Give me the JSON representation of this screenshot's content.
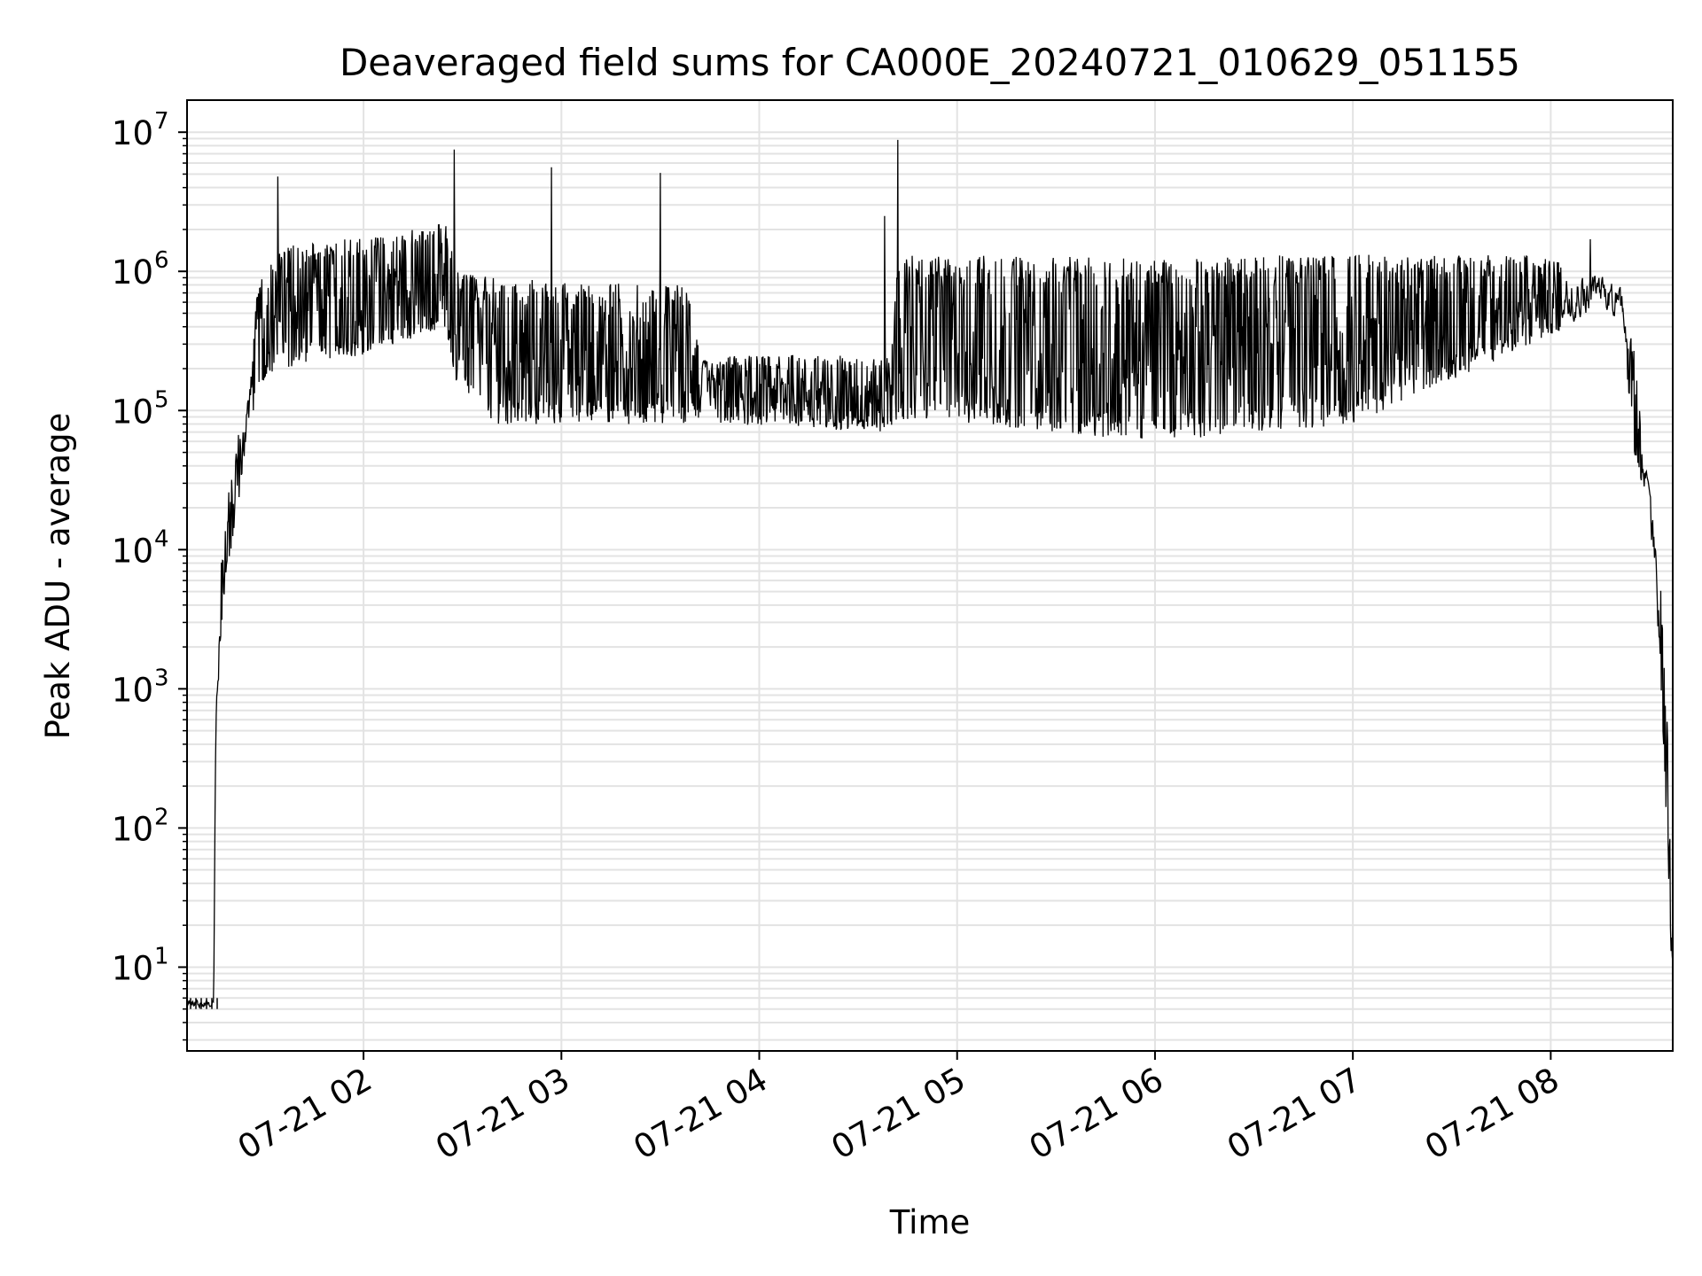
{
  "chart_data": {
    "type": "line",
    "title": "Deaveraged field sums for CA000E_20240721_010629_051155",
    "xlabel": "Time",
    "ylabel": "Peak ADU - average",
    "yscale": "log",
    "ylim": [
      2.5,
      17000000
    ],
    "xlim": [
      "2024-07-21 01:06:29",
      "2024-07-21 08:37:00"
    ],
    "grid": true,
    "legend": "none",
    "colors": {
      "line": "#000000",
      "grid": "#e3e3e3",
      "axes": "#000000"
    },
    "x_ticks": [
      {
        "value": "2024-07-21 02:00",
        "label": "07-21 02"
      },
      {
        "value": "2024-07-21 03:00",
        "label": "07-21 03"
      },
      {
        "value": "2024-07-21 04:00",
        "label": "07-21 04"
      },
      {
        "value": "2024-07-21 05:00",
        "label": "07-21 05"
      },
      {
        "value": "2024-07-21 06:00",
        "label": "07-21 06"
      },
      {
        "value": "2024-07-21 07:00",
        "label": "07-21 07"
      },
      {
        "value": "2024-07-21 08:00",
        "label": "07-21 08"
      }
    ],
    "y_ticks": [
      {
        "value": 10,
        "base": "10",
        "exp": "1"
      },
      {
        "value": 100,
        "base": "10",
        "exp": "2"
      },
      {
        "value": 1000,
        "base": "10",
        "exp": "3"
      },
      {
        "value": 10000,
        "base": "10",
        "exp": "4"
      },
      {
        "value": 100000,
        "base": "10",
        "exp": "5"
      },
      {
        "value": 1000000,
        "base": "10",
        "exp": "6"
      },
      {
        "value": 10000000,
        "base": "10",
        "exp": "7"
      }
    ],
    "series": [
      {
        "envelope": [
          {
            "t": "2024-07-21 01:06:29",
            "low": 5,
            "high": 6
          },
          {
            "t": "2024-07-21 01:14:30",
            "low": 5,
            "high": 6
          },
          {
            "t": "2024-07-21 01:15:00",
            "low": 400,
            "high": 900
          },
          {
            "t": "2024-07-21 01:17:00",
            "low": 3000,
            "high": 10000
          },
          {
            "t": "2024-07-21 01:21:00",
            "low": 15000,
            "high": 60000
          },
          {
            "t": "2024-07-21 01:25:00",
            "low": 60000,
            "high": 150000
          },
          {
            "t": "2024-07-21 01:28:00",
            "low": 150000,
            "high": 800000
          },
          {
            "t": "2024-07-21 01:35:00",
            "low": 200000,
            "high": 1500000
          },
          {
            "t": "2024-07-21 02:00:00",
            "low": 250000,
            "high": 1800000
          },
          {
            "t": "2024-07-21 02:25:00",
            "low": 400000,
            "high": 2200000
          },
          {
            "t": "2024-07-21 02:28:00",
            "low": 150000,
            "high": 1000000
          },
          {
            "t": "2024-07-21 02:40:00",
            "low": 80000,
            "high": 900000
          },
          {
            "t": "2024-07-21 03:40:00",
            "low": 80000,
            "high": 800000
          },
          {
            "t": "2024-07-21 03:42:00",
            "low": 80000,
            "high": 250000
          },
          {
            "t": "2024-07-21 04:40:00",
            "low": 70000,
            "high": 250000
          },
          {
            "t": "2024-07-21 04:42:00",
            "low": 80000,
            "high": 1300000
          },
          {
            "t": "2024-07-21 05:00:00",
            "low": 80000,
            "high": 1300000
          },
          {
            "t": "2024-07-21 06:00:00",
            "low": 60000,
            "high": 1250000
          },
          {
            "t": "2024-07-21 07:00:00",
            "low": 80000,
            "high": 1350000
          },
          {
            "t": "2024-07-21 07:55:00",
            "low": 300000,
            "high": 1300000
          },
          {
            "t": "2024-07-21 08:15:00",
            "low": 500000,
            "high": 1000000
          },
          {
            "t": "2024-07-21 08:22:00",
            "low": 400000,
            "high": 800000
          },
          {
            "t": "2024-07-21 08:25:00",
            "low": 50000,
            "high": 300000
          },
          {
            "t": "2024-07-21 08:29:00",
            "low": 20000,
            "high": 40000
          },
          {
            "t": "2024-07-21 08:33:00",
            "low": 2000,
            "high": 8000
          },
          {
            "t": "2024-07-21 08:35:30",
            "low": 60,
            "high": 500
          },
          {
            "t": "2024-07-21 08:37:00",
            "low": 5,
            "high": 10
          }
        ],
        "spikes": [
          {
            "t": "2024-07-21 01:34:00",
            "value": 4800000
          },
          {
            "t": "2024-07-21 02:27:30",
            "value": 7500000
          },
          {
            "t": "2024-07-21 02:57:00",
            "value": 5600000
          },
          {
            "t": "2024-07-21 03:30:00",
            "value": 5100000
          },
          {
            "t": "2024-07-21 04:38:00",
            "value": 2500000
          },
          {
            "t": "2024-07-21 04:42:00",
            "value": 8800000
          },
          {
            "t": "2024-07-21 08:12:00",
            "value": 1700000
          }
        ]
      }
    ]
  }
}
